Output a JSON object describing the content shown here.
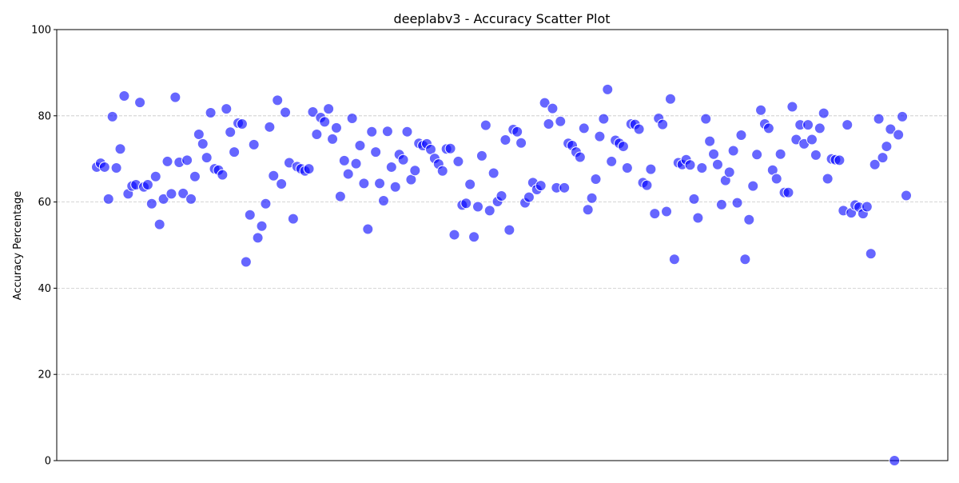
{
  "chart_data": {
    "type": "scatter",
    "title": "deeplabv3 - Accuracy Scatter Plot",
    "y_label": "Accuracy Percentage",
    "color": "#0000ff",
    "grid": true,
    "ylim": [
      0,
      100
    ],
    "yticks": [
      0,
      20,
      40,
      60,
      80,
      100
    ],
    "values": [
      68.1,
      69,
      68.1,
      60.7,
      79.8,
      67.9,
      72.3,
      84.6,
      61.9,
      63.7,
      64,
      83.1,
      63.5,
      64,
      59.6,
      65.9,
      54.8,
      60.7,
      69.4,
      61.9,
      84.3,
      69.2,
      62,
      69.7,
      60.7,
      65.9,
      75.7,
      73.5,
      70.3,
      80.7,
      67.7,
      67.4,
      66.3,
      81.6,
      76.2,
      71.6,
      78.3,
      78.1,
      46.1,
      57,
      73.3,
      51.7,
      54.4,
      59.6,
      77.4,
      66.1,
      83.6,
      64.2,
      80.8,
      69.1,
      56.1,
      68.2,
      67.7,
      67.2,
      67.7,
      80.9,
      75.7,
      79.6,
      78.6,
      81.6,
      74.6,
      77.2,
      61.3,
      69.6,
      66.5,
      79.4,
      68.9,
      73.1,
      64.3,
      53.7,
      76.3,
      71.6,
      64.3,
      60.3,
      76.4,
      68.1,
      63.5,
      71,
      69.8,
      76.3,
      65.2,
      67.3,
      73.6,
      73.1,
      73.5,
      72.2,
      70.1,
      68.8,
      67.2,
      72.3,
      72.4,
      52.4,
      69.4,
      59.3,
      59.7,
      64.1,
      51.9,
      58.9,
      70.7,
      77.8,
      58,
      66.7,
      60.1,
      61.4,
      74.4,
      53.5,
      76.8,
      76.3,
      73.7,
      59.8,
      61.1,
      64.5,
      62.9,
      63.8,
      83,
      78.1,
      81.7,
      63.3,
      78.7,
      63.3,
      73.6,
      73.1,
      71.6,
      70.4,
      77.1,
      58.2,
      60.9,
      65.3,
      75.2,
      79.3,
      86.1,
      69.4,
      74.3,
      73.6,
      72.9,
      67.9,
      78.1,
      78,
      76.9,
      64.5,
      63.9,
      67.6,
      57.3,
      79.4,
      78,
      57.8,
      83.9,
      46.7,
      69.1,
      68.7,
      69.8,
      68.6,
      60.7,
      56.3,
      67.9,
      79.3,
      74.1,
      71.1,
      68.7,
      59.4,
      65,
      66.9,
      71.9,
      59.8,
      75.5,
      46.7,
      55.9,
      63.7,
      71,
      81.3,
      78.1,
      77.1,
      67.4,
      65.4,
      71.1,
      62.2,
      62.2,
      82.1,
      74.5,
      77.9,
      73.5,
      77.9,
      74.5,
      70.9,
      77.1,
      80.6,
      65.4,
      70,
      69.8,
      69.7,
      58,
      77.9,
      57.5,
      59.3,
      58.8,
      57.3,
      58.9,
      48,
      68.7,
      79.3,
      70.3,
      72.9,
      76.9,
      0,
      75.6,
      79.8,
      61.5
    ]
  }
}
